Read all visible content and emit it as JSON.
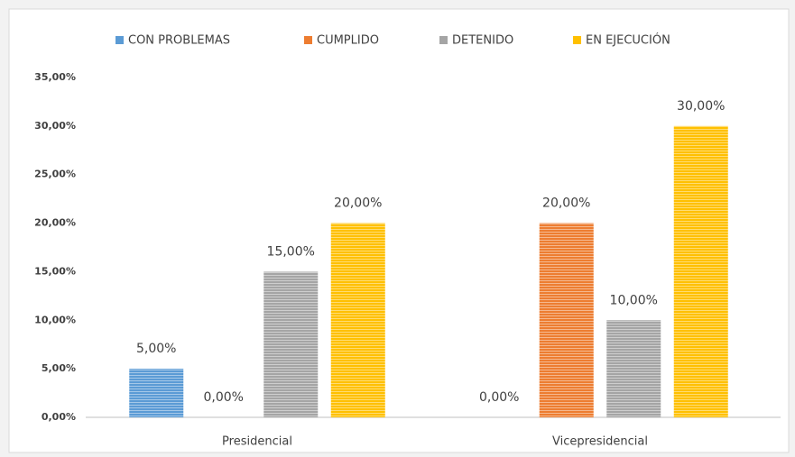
{
  "chart_data": {
    "type": "bar",
    "categories": [
      "Presidencial",
      "Vicepresidencial"
    ],
    "series": [
      {
        "name": "CON PROBLEMAS",
        "color": "#5b9bd5",
        "values": [
          5,
          0
        ],
        "value_labels": [
          "5,00%",
          "0,00%"
        ]
      },
      {
        "name": "CUMPLIDO",
        "color": "#ed7d31",
        "values": [
          0,
          20
        ],
        "value_labels": [
          "0,00%",
          "20,00%"
        ]
      },
      {
        "name": "DETENIDO",
        "color": "#a5a5a5",
        "values": [
          15,
          10
        ],
        "value_labels": [
          "15,00%",
          "10,00%"
        ]
      },
      {
        "name": "EN EJECUCIÓN",
        "color": "#ffc000",
        "values": [
          20,
          30
        ],
        "value_labels": [
          "20,00%",
          "30,00%"
        ]
      }
    ],
    "ylim": [
      0,
      35
    ],
    "yticks": [
      {
        "value": 0,
        "label": "0,00%"
      },
      {
        "value": 5,
        "label": "5,00%"
      },
      {
        "value": 10,
        "label": "10,00%"
      },
      {
        "value": 15,
        "label": "15,00%"
      },
      {
        "value": 20,
        "label": "20,00%"
      },
      {
        "value": 25,
        "label": "25,00%"
      },
      {
        "value": 30,
        "label": "30,00%"
      },
      {
        "value": 35,
        "label": "35,00%"
      }
    ],
    "grid": false,
    "legend": "top"
  }
}
